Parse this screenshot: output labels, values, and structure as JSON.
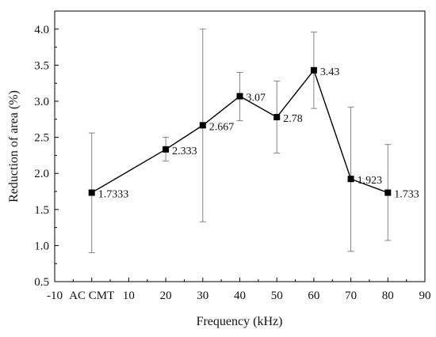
{
  "chart_data": {
    "type": "line",
    "title": "",
    "xlabel": "Frequency (kHz)",
    "ylabel": "Reduction of area (%)",
    "xlim": [
      -10,
      90
    ],
    "ylim": [
      0.5,
      4.25
    ],
    "x_tick_labels": [
      {
        "x": -10,
        "label": "-10"
      },
      {
        "x": 0,
        "label": "AC CMT"
      },
      {
        "x": 10,
        "label": "10"
      },
      {
        "x": 20,
        "label": "20"
      },
      {
        "x": 30,
        "label": "30"
      },
      {
        "x": 40,
        "label": "40"
      },
      {
        "x": 50,
        "label": "50"
      },
      {
        "x": 60,
        "label": "60"
      },
      {
        "x": 70,
        "label": "70"
      },
      {
        "x": 80,
        "label": "80"
      },
      {
        "x": 90,
        "label": "90"
      }
    ],
    "y_ticks": [
      0.5,
      1.0,
      1.5,
      2.0,
      2.5,
      3.0,
      3.5,
      4.0
    ],
    "y_tick_labels": [
      "0.5",
      "1.0",
      "1.5",
      "2.0",
      "2.5",
      "3.0",
      "3.5",
      "4.0"
    ],
    "grid": false,
    "series": [
      {
        "marker": "square",
        "color": "#000000",
        "points": [
          {
            "x": 0,
            "y": 1.7333,
            "label": "1.7333",
            "err_low": 0.9,
            "err_high": 2.56
          },
          {
            "x": 20,
            "y": 2.333,
            "label": "2.333",
            "err_low": 2.17,
            "err_high": 2.5
          },
          {
            "x": 30,
            "y": 2.667,
            "label": "2.667",
            "err_low": 1.33,
            "err_high": 4.0
          },
          {
            "x": 40,
            "y": 3.07,
            "label": "3.07",
            "err_low": 2.73,
            "err_high": 3.4
          },
          {
            "x": 50,
            "y": 2.78,
            "label": "2.78",
            "err_low": 2.28,
            "err_high": 3.28
          },
          {
            "x": 60,
            "y": 3.43,
            "label": "3.43",
            "err_low": 2.9,
            "err_high": 3.96
          },
          {
            "x": 70,
            "y": 1.923,
            "label": "1.923",
            "err_low": 0.92,
            "err_high": 2.92
          },
          {
            "x": 80,
            "y": 1.733,
            "label": "1.733",
            "err_low": 1.07,
            "err_high": 2.4
          }
        ]
      }
    ]
  }
}
